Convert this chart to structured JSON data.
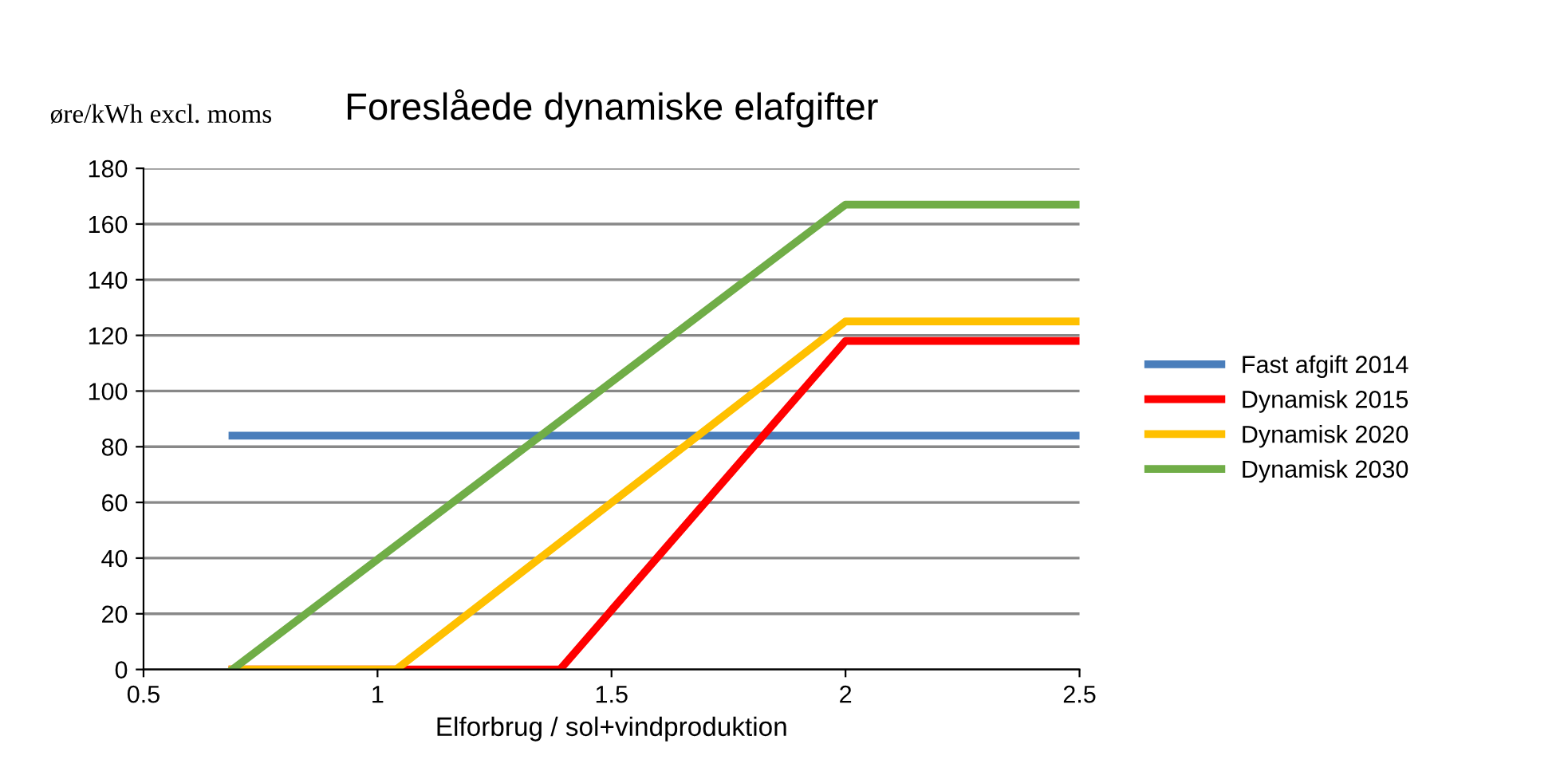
{
  "chart_data": {
    "type": "line",
    "title": "Foreslåede dynamiske elafgifter",
    "ylabel": "øre/kWh excl. moms",
    "xlabel": "Elforbrug / sol+vindproduktion",
    "series": [
      {
        "name": "Fast afgift 2014",
        "color": "#4a7ebb",
        "x": [
          0.69,
          2.5
        ],
        "values": [
          84,
          84
        ]
      },
      {
        "name": "Dynamisk 2015",
        "color": "#ff0000",
        "x": [
          0.69,
          1.39,
          2.0,
          2.5
        ],
        "values": [
          0,
          0,
          118,
          118
        ]
      },
      {
        "name": "Dynamisk 2020",
        "color": "#ffc000",
        "x": [
          0.69,
          1.04,
          2.0,
          2.5
        ],
        "values": [
          0,
          0,
          125,
          125
        ]
      },
      {
        "name": "Dynamisk 2030",
        "color": "#70ad47",
        "x": [
          0.69,
          2.0,
          2.5
        ],
        "values": [
          0,
          167,
          167
        ]
      }
    ],
    "xlim": [
      0.5,
      2.5
    ],
    "xticks": [
      0.5,
      1,
      1.5,
      2,
      2.5
    ],
    "ylim": [
      0,
      180
    ],
    "yticks": [
      0,
      20,
      40,
      60,
      80,
      100,
      120,
      140,
      160,
      180
    ],
    "grid": "y",
    "legend": "right",
    "marker": "none",
    "line_style": "solid"
  }
}
